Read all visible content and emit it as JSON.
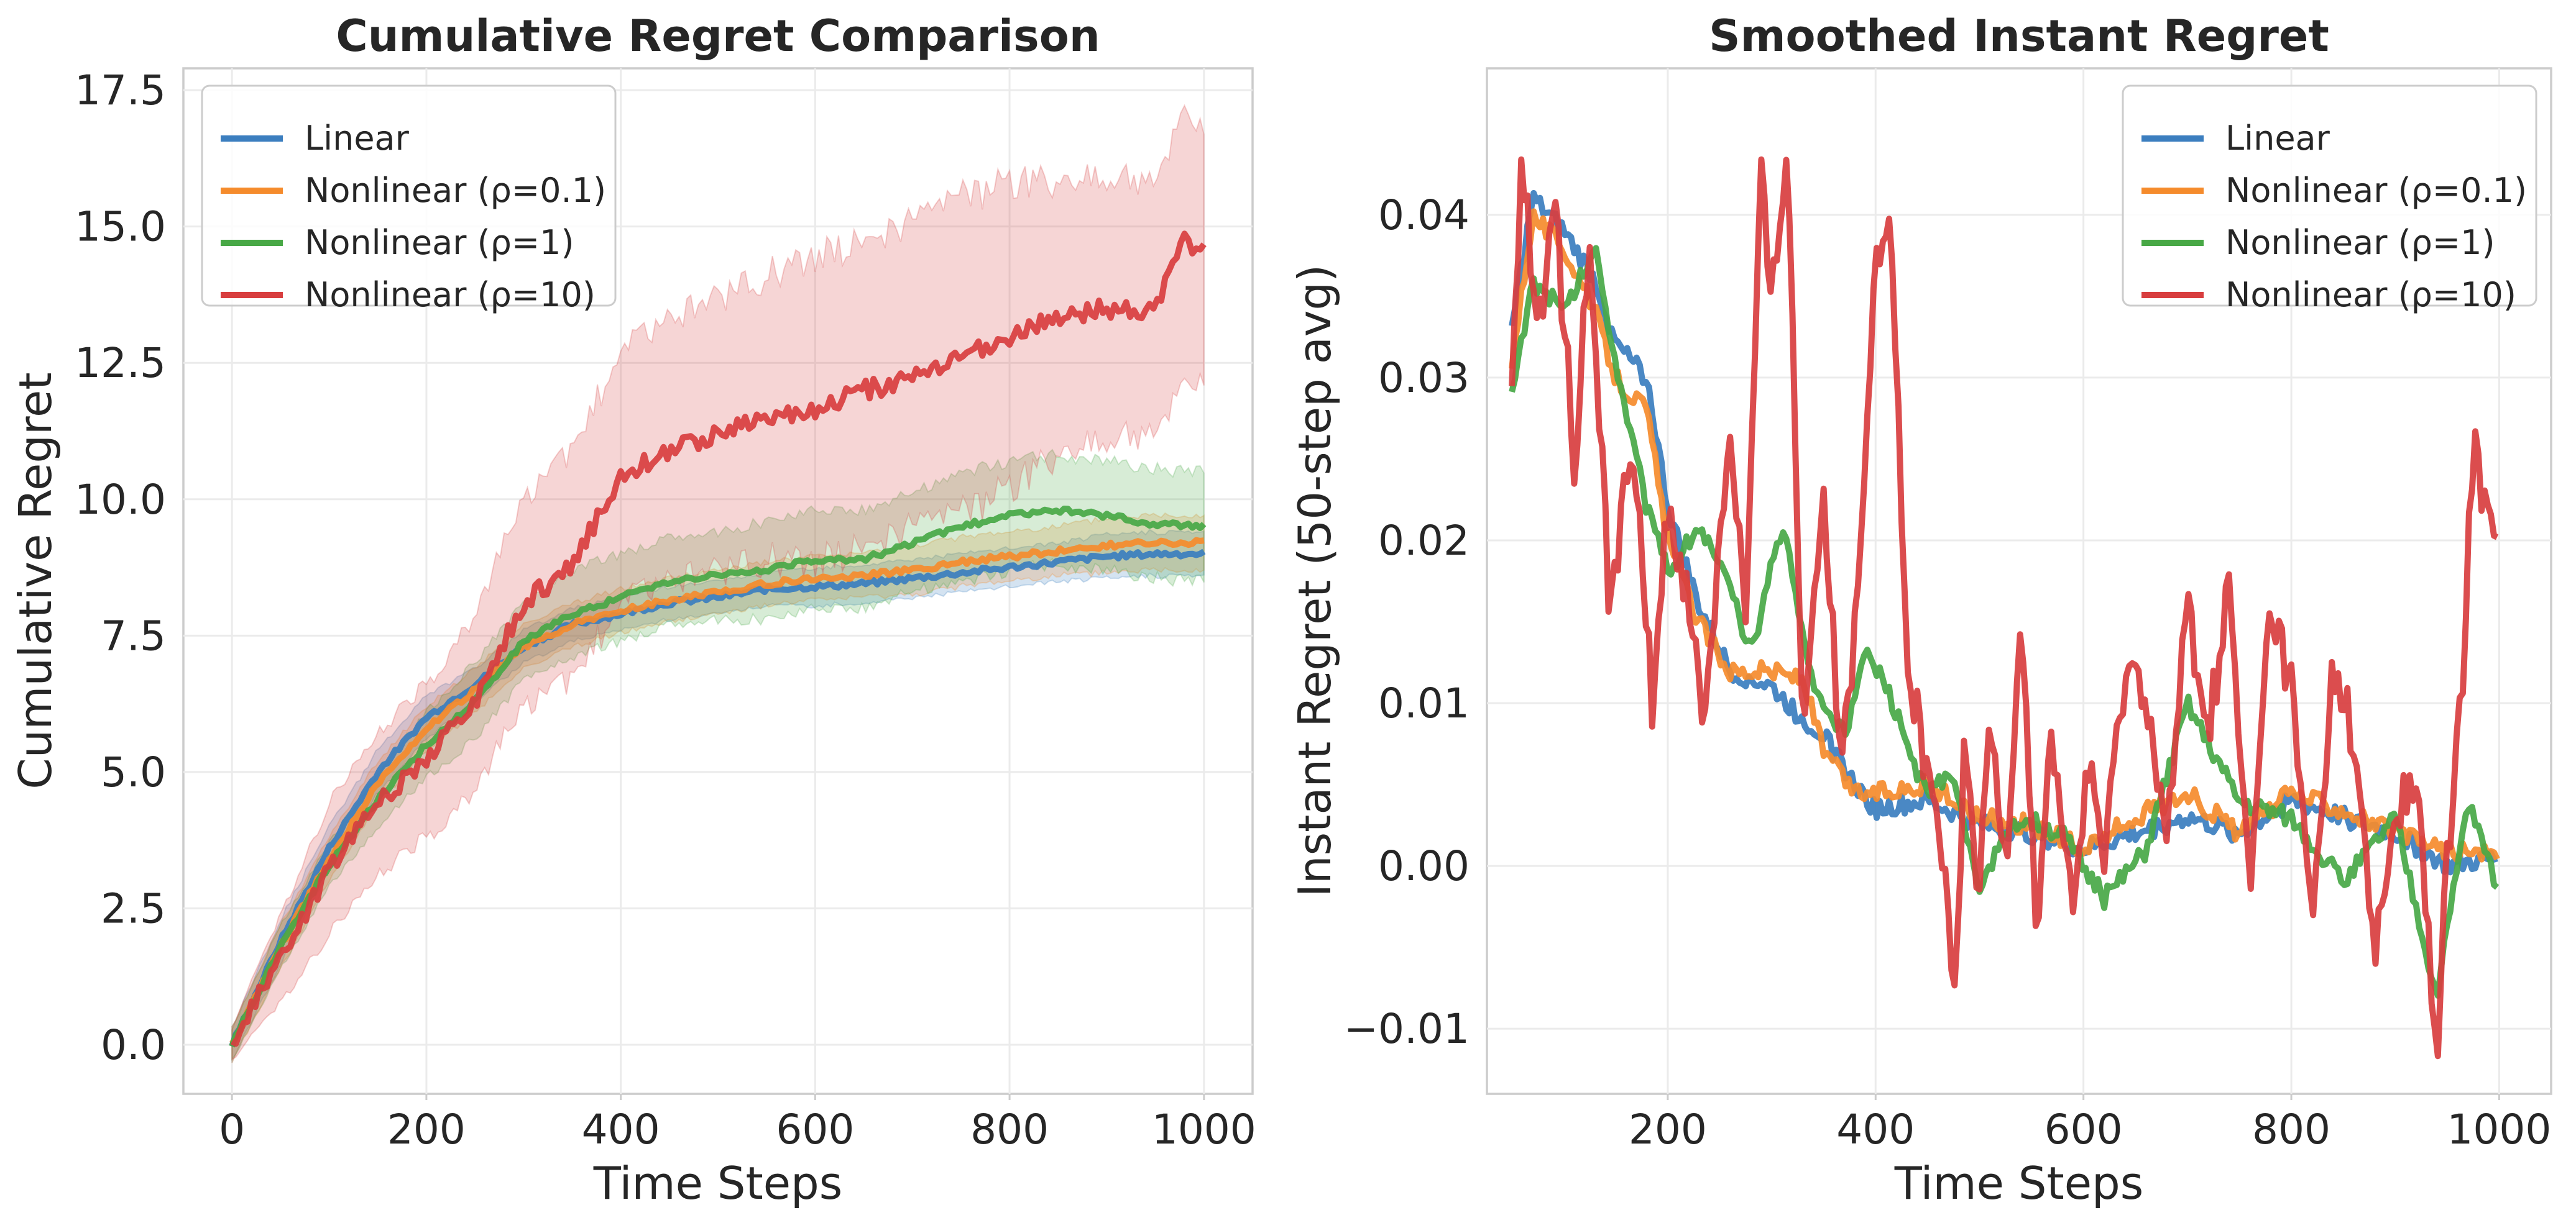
{
  "colors": {
    "linear": "#3b7ebf",
    "rho01": "#f58b2c",
    "rho1": "#48a846",
    "rho10": "#d83e3f"
  },
  "chart_data": [
    {
      "type": "line",
      "title": "Cumulative Regret Comparison",
      "xlabel": "Time Steps",
      "ylabel": "Cumulative Regret",
      "xlim": [
        -50,
        1050
      ],
      "ylim": [
        -0.9,
        17.9
      ],
      "xticks": [
        0,
        200,
        400,
        600,
        800,
        1000
      ],
      "xtick_labels": [
        "0",
        "200",
        "400",
        "600",
        "800",
        "1000"
      ],
      "yticks": [
        0,
        2.5,
        5,
        7.5,
        10,
        12.5,
        15,
        17.5
      ],
      "ytick_labels": [
        "0.0",
        "2.5",
        "5.0",
        "7.5",
        "10.0",
        "12.5",
        "15.0",
        "17.5"
      ],
      "grid": true,
      "legend_position": "top-left",
      "series": [
        {
          "name": "Linear",
          "color_key": "linear",
          "x": [
            0,
            50,
            100,
            150,
            200,
            250,
            300,
            350,
            400,
            450,
            500,
            550,
            600,
            650,
            700,
            750,
            800,
            850,
            900,
            950,
            1000
          ],
          "y": [
            0,
            1.9,
            3.6,
            5.0,
            6.0,
            6.6,
            7.3,
            7.7,
            7.9,
            8.1,
            8.2,
            8.35,
            8.4,
            8.45,
            8.55,
            8.65,
            8.75,
            8.85,
            8.95,
            9.0,
            9.0
          ],
          "band": [
            0.3,
            0.4,
            0.4,
            0.4,
            0.4,
            0.3,
            0.3,
            0.3,
            0.3,
            0.3,
            0.3,
            0.3,
            0.35,
            0.35,
            0.35,
            0.35,
            0.35,
            0.35,
            0.4,
            0.4,
            0.4
          ]
        },
        {
          "name": "Nonlinear (ρ=0.1)",
          "color_key": "rho01",
          "x": [
            0,
            50,
            100,
            150,
            200,
            250,
            300,
            350,
            400,
            450,
            500,
            550,
            600,
            650,
            700,
            750,
            800,
            850,
            900,
            950,
            1000
          ],
          "y": [
            0,
            1.8,
            3.4,
            4.8,
            5.8,
            6.5,
            7.3,
            7.7,
            7.95,
            8.15,
            8.3,
            8.45,
            8.55,
            8.6,
            8.7,
            8.85,
            8.95,
            9.05,
            9.15,
            9.2,
            9.2
          ],
          "band": [
            0.3,
            0.4,
            0.4,
            0.4,
            0.4,
            0.4,
            0.4,
            0.4,
            0.4,
            0.4,
            0.4,
            0.4,
            0.4,
            0.4,
            0.45,
            0.45,
            0.45,
            0.45,
            0.5,
            0.5,
            0.5
          ]
        },
        {
          "name": "Nonlinear (ρ=1)",
          "color_key": "rho1",
          "x": [
            0,
            50,
            100,
            150,
            200,
            250,
            300,
            350,
            400,
            450,
            500,
            550,
            600,
            650,
            700,
            750,
            800,
            850,
            900,
            950,
            1000
          ],
          "y": [
            0,
            1.8,
            3.3,
            4.5,
            5.5,
            6.3,
            7.4,
            7.9,
            8.2,
            8.5,
            8.6,
            8.7,
            8.9,
            8.9,
            9.2,
            9.5,
            9.7,
            9.8,
            9.7,
            9.55,
            9.5
          ],
          "band": [
            0.3,
            0.4,
            0.4,
            0.5,
            0.6,
            0.7,
            0.7,
            0.8,
            0.8,
            0.8,
            0.8,
            0.9,
            0.9,
            0.9,
            0.9,
            1.0,
            1.0,
            1.0,
            1.0,
            1.0,
            1.0
          ]
        },
        {
          "name": "Nonlinear (ρ=10)",
          "color_key": "rho10",
          "x": [
            0,
            50,
            100,
            150,
            200,
            250,
            300,
            350,
            400,
            450,
            500,
            550,
            600,
            650,
            700,
            750,
            800,
            850,
            900,
            950,
            980,
            1000
          ],
          "y": [
            0,
            1.6,
            3.2,
            4.4,
            5.2,
            6.3,
            8.1,
            8.8,
            10.4,
            10.9,
            11.2,
            11.5,
            11.6,
            12.0,
            12.2,
            12.6,
            13.0,
            13.3,
            13.5,
            13.5,
            14.8,
            14.5
          ],
          "band": [
            0.3,
            0.8,
            1.2,
            1.3,
            1.4,
            1.6,
            1.9,
            2.1,
            2.3,
            2.4,
            2.5,
            2.6,
            2.8,
            2.8,
            2.8,
            2.9,
            2.8,
            2.5,
            2.4,
            2.3,
            2.5,
            2.3
          ]
        }
      ]
    },
    {
      "type": "line",
      "title": "Smoothed Instant Regret",
      "xlabel": "Time Steps",
      "ylabel": "Instant Regret (50-step avg)",
      "xlim": [
        26,
        1050
      ],
      "ylim": [
        -0.014,
        0.049
      ],
      "xticks": [
        200,
        400,
        600,
        800,
        1000
      ],
      "xtick_labels": [
        "200",
        "400",
        "600",
        "800",
        "1000"
      ],
      "yticks": [
        -0.01,
        0,
        0.01,
        0.02,
        0.03,
        0.04
      ],
      "ytick_labels": [
        "−0.01",
        "0.00",
        "0.01",
        "0.02",
        "0.03",
        "0.04"
      ],
      "grid": true,
      "legend_position": "top-right",
      "series": [
        {
          "name": "Linear",
          "color_key": "linear",
          "x": [
            50,
            70,
            100,
            130,
            150,
            180,
            200,
            230,
            260,
            300,
            330,
            350,
            380,
            400,
            450,
            500,
            550,
            600,
            650,
            700,
            750,
            800,
            850,
            900,
            950,
            1000
          ],
          "y": [
            0.033,
            0.041,
            0.039,
            0.036,
            0.032,
            0.03,
            0.022,
            0.016,
            0.012,
            0.011,
            0.009,
            0.008,
            0.005,
            0.0035,
            0.004,
            0.0025,
            0.002,
            0.001,
            0.002,
            0.003,
            0.002,
            0.004,
            0.003,
            0.002,
            0.0,
            0.0005
          ]
        },
        {
          "name": "Nonlinear (ρ=0.1)",
          "color_key": "rho01",
          "x": [
            50,
            70,
            100,
            130,
            150,
            180,
            200,
            230,
            260,
            300,
            330,
            350,
            380,
            400,
            450,
            500,
            550,
            600,
            650,
            700,
            750,
            800,
            850,
            900,
            950,
            1000
          ],
          "y": [
            0.031,
            0.04,
            0.038,
            0.034,
            0.03,
            0.028,
            0.02,
            0.015,
            0.012,
            0.012,
            0.0115,
            0.007,
            0.0045,
            0.0045,
            0.005,
            0.003,
            0.0025,
            0.001,
            0.003,
            0.0045,
            0.002,
            0.0045,
            0.0035,
            0.002,
            0.001,
            0.0005
          ]
        },
        {
          "name": "Nonlinear (ρ=1)",
          "color_key": "rho1",
          "x": [
            50,
            70,
            100,
            130,
            150,
            180,
            200,
            230,
            260,
            280,
            310,
            340,
            370,
            390,
            410,
            450,
            470,
            500,
            540,
            580,
            620,
            660,
            700,
            750,
            800,
            850,
            900,
            940,
            970,
            1000
          ],
          "y": [
            0.029,
            0.036,
            0.034,
            0.038,
            0.031,
            0.022,
            0.018,
            0.021,
            0.017,
            0.013,
            0.021,
            0.011,
            0.008,
            0.013,
            0.011,
            0.004,
            0.006,
            -0.001,
            0.003,
            0.002,
            -0.002,
            0.001,
            0.01,
            0.004,
            0.003,
            -0.001,
            0.003,
            -0.008,
            0.004,
            -0.0015
          ]
        },
        {
          "name": "Nonlinear (ρ=10)",
          "color_key": "rho10",
          "x": [
            50,
            60,
            75,
            90,
            110,
            125,
            145,
            165,
            185,
            200,
            215,
            235,
            260,
            275,
            290,
            300,
            315,
            330,
            350,
            365,
            380,
            400,
            415,
            430,
            450,
            465,
            475,
            485,
            500,
            510,
            525,
            540,
            555,
            570,
            590,
            605,
            620,
            640,
            660,
            680,
            700,
            720,
            740,
            760,
            780,
            800,
            820,
            840,
            860,
            880,
            900,
            920,
            940,
            950,
            965,
            975,
            990,
            1000
          ],
          "y": [
            0.031,
            0.044,
            0.032,
            0.042,
            0.025,
            0.038,
            0.015,
            0.027,
            0.01,
            0.022,
            0.018,
            0.009,
            0.027,
            0.015,
            0.042,
            0.034,
            0.045,
            0.008,
            0.024,
            0.007,
            0.014,
            0.038,
            0.04,
            0.012,
            0.006,
            0.0,
            -0.009,
            0.006,
            -0.002,
            0.009,
            0.0,
            0.016,
            -0.004,
            0.008,
            -0.003,
            0.007,
            0.0,
            0.012,
            0.011,
            0.001,
            0.016,
            0.008,
            0.017,
            -0.002,
            0.016,
            0.011,
            -0.004,
            0.012,
            0.008,
            -0.006,
            0.003,
            0.005,
            -0.011,
            0.0,
            0.011,
            0.026,
            0.021,
            0.021
          ]
        }
      ]
    }
  ]
}
